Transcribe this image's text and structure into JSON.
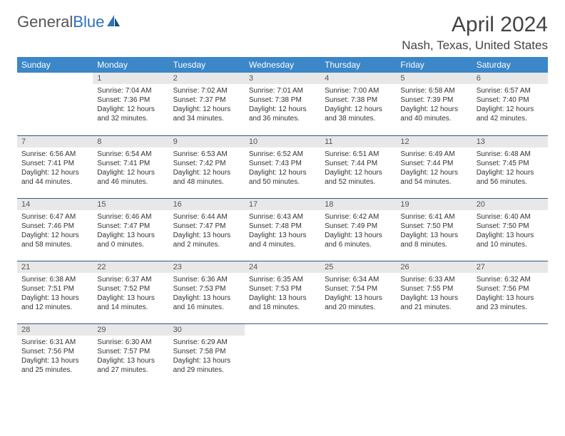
{
  "logo": {
    "text1": "General",
    "text2": "Blue"
  },
  "title": {
    "month_year": "April 2024",
    "location": "Nash, Texas, United States"
  },
  "colors": {
    "header_bg": "#3b87c8",
    "header_text": "#ffffff",
    "daynum_bg": "#e8e8e8",
    "daynum_text": "#555555",
    "row_divider": "#2d5a8a",
    "body_text": "#333333",
    "logo_gray": "#555555",
    "logo_blue": "#2d72b8"
  },
  "day_headers": [
    "Sunday",
    "Monday",
    "Tuesday",
    "Wednesday",
    "Thursday",
    "Friday",
    "Saturday"
  ],
  "weeks": [
    [
      {
        "n": "",
        "sr": "",
        "ss": "",
        "d1": "",
        "d2": ""
      },
      {
        "n": "1",
        "sr": "Sunrise: 7:04 AM",
        "ss": "Sunset: 7:36 PM",
        "d1": "Daylight: 12 hours",
        "d2": "and 32 minutes."
      },
      {
        "n": "2",
        "sr": "Sunrise: 7:02 AM",
        "ss": "Sunset: 7:37 PM",
        "d1": "Daylight: 12 hours",
        "d2": "and 34 minutes."
      },
      {
        "n": "3",
        "sr": "Sunrise: 7:01 AM",
        "ss": "Sunset: 7:38 PM",
        "d1": "Daylight: 12 hours",
        "d2": "and 36 minutes."
      },
      {
        "n": "4",
        "sr": "Sunrise: 7:00 AM",
        "ss": "Sunset: 7:38 PM",
        "d1": "Daylight: 12 hours",
        "d2": "and 38 minutes."
      },
      {
        "n": "5",
        "sr": "Sunrise: 6:58 AM",
        "ss": "Sunset: 7:39 PM",
        "d1": "Daylight: 12 hours",
        "d2": "and 40 minutes."
      },
      {
        "n": "6",
        "sr": "Sunrise: 6:57 AM",
        "ss": "Sunset: 7:40 PM",
        "d1": "Daylight: 12 hours",
        "d2": "and 42 minutes."
      }
    ],
    [
      {
        "n": "7",
        "sr": "Sunrise: 6:56 AM",
        "ss": "Sunset: 7:41 PM",
        "d1": "Daylight: 12 hours",
        "d2": "and 44 minutes."
      },
      {
        "n": "8",
        "sr": "Sunrise: 6:54 AM",
        "ss": "Sunset: 7:41 PM",
        "d1": "Daylight: 12 hours",
        "d2": "and 46 minutes."
      },
      {
        "n": "9",
        "sr": "Sunrise: 6:53 AM",
        "ss": "Sunset: 7:42 PM",
        "d1": "Daylight: 12 hours",
        "d2": "and 48 minutes."
      },
      {
        "n": "10",
        "sr": "Sunrise: 6:52 AM",
        "ss": "Sunset: 7:43 PM",
        "d1": "Daylight: 12 hours",
        "d2": "and 50 minutes."
      },
      {
        "n": "11",
        "sr": "Sunrise: 6:51 AM",
        "ss": "Sunset: 7:44 PM",
        "d1": "Daylight: 12 hours",
        "d2": "and 52 minutes."
      },
      {
        "n": "12",
        "sr": "Sunrise: 6:49 AM",
        "ss": "Sunset: 7:44 PM",
        "d1": "Daylight: 12 hours",
        "d2": "and 54 minutes."
      },
      {
        "n": "13",
        "sr": "Sunrise: 6:48 AM",
        "ss": "Sunset: 7:45 PM",
        "d1": "Daylight: 12 hours",
        "d2": "and 56 minutes."
      }
    ],
    [
      {
        "n": "14",
        "sr": "Sunrise: 6:47 AM",
        "ss": "Sunset: 7:46 PM",
        "d1": "Daylight: 12 hours",
        "d2": "and 58 minutes."
      },
      {
        "n": "15",
        "sr": "Sunrise: 6:46 AM",
        "ss": "Sunset: 7:47 PM",
        "d1": "Daylight: 13 hours",
        "d2": "and 0 minutes."
      },
      {
        "n": "16",
        "sr": "Sunrise: 6:44 AM",
        "ss": "Sunset: 7:47 PM",
        "d1": "Daylight: 13 hours",
        "d2": "and 2 minutes."
      },
      {
        "n": "17",
        "sr": "Sunrise: 6:43 AM",
        "ss": "Sunset: 7:48 PM",
        "d1": "Daylight: 13 hours",
        "d2": "and 4 minutes."
      },
      {
        "n": "18",
        "sr": "Sunrise: 6:42 AM",
        "ss": "Sunset: 7:49 PM",
        "d1": "Daylight: 13 hours",
        "d2": "and 6 minutes."
      },
      {
        "n": "19",
        "sr": "Sunrise: 6:41 AM",
        "ss": "Sunset: 7:50 PM",
        "d1": "Daylight: 13 hours",
        "d2": "and 8 minutes."
      },
      {
        "n": "20",
        "sr": "Sunrise: 6:40 AM",
        "ss": "Sunset: 7:50 PM",
        "d1": "Daylight: 13 hours",
        "d2": "and 10 minutes."
      }
    ],
    [
      {
        "n": "21",
        "sr": "Sunrise: 6:38 AM",
        "ss": "Sunset: 7:51 PM",
        "d1": "Daylight: 13 hours",
        "d2": "and 12 minutes."
      },
      {
        "n": "22",
        "sr": "Sunrise: 6:37 AM",
        "ss": "Sunset: 7:52 PM",
        "d1": "Daylight: 13 hours",
        "d2": "and 14 minutes."
      },
      {
        "n": "23",
        "sr": "Sunrise: 6:36 AM",
        "ss": "Sunset: 7:53 PM",
        "d1": "Daylight: 13 hours",
        "d2": "and 16 minutes."
      },
      {
        "n": "24",
        "sr": "Sunrise: 6:35 AM",
        "ss": "Sunset: 7:53 PM",
        "d1": "Daylight: 13 hours",
        "d2": "and 18 minutes."
      },
      {
        "n": "25",
        "sr": "Sunrise: 6:34 AM",
        "ss": "Sunset: 7:54 PM",
        "d1": "Daylight: 13 hours",
        "d2": "and 20 minutes."
      },
      {
        "n": "26",
        "sr": "Sunrise: 6:33 AM",
        "ss": "Sunset: 7:55 PM",
        "d1": "Daylight: 13 hours",
        "d2": "and 21 minutes."
      },
      {
        "n": "27",
        "sr": "Sunrise: 6:32 AM",
        "ss": "Sunset: 7:56 PM",
        "d1": "Daylight: 13 hours",
        "d2": "and 23 minutes."
      }
    ],
    [
      {
        "n": "28",
        "sr": "Sunrise: 6:31 AM",
        "ss": "Sunset: 7:56 PM",
        "d1": "Daylight: 13 hours",
        "d2": "and 25 minutes."
      },
      {
        "n": "29",
        "sr": "Sunrise: 6:30 AM",
        "ss": "Sunset: 7:57 PM",
        "d1": "Daylight: 13 hours",
        "d2": "and 27 minutes."
      },
      {
        "n": "30",
        "sr": "Sunrise: 6:29 AM",
        "ss": "Sunset: 7:58 PM",
        "d1": "Daylight: 13 hours",
        "d2": "and 29 minutes."
      },
      {
        "n": "",
        "sr": "",
        "ss": "",
        "d1": "",
        "d2": ""
      },
      {
        "n": "",
        "sr": "",
        "ss": "",
        "d1": "",
        "d2": ""
      },
      {
        "n": "",
        "sr": "",
        "ss": "",
        "d1": "",
        "d2": ""
      },
      {
        "n": "",
        "sr": "",
        "ss": "",
        "d1": "",
        "d2": ""
      }
    ]
  ]
}
